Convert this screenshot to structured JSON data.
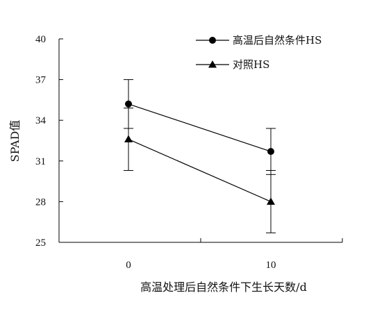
{
  "chart_data": {
    "type": "line",
    "title": "",
    "xlabel": "高温处理后自然条件下生长天数/d",
    "ylabel": "SPAD值",
    "ylim": [
      25,
      40
    ],
    "yticks": [
      25,
      28,
      31,
      34,
      37,
      40
    ],
    "ytick_labels": [
      "25",
      "28",
      "31",
      "34",
      "37",
      "40"
    ],
    "x": [
      0,
      10
    ],
    "xtick_labels": [
      "0",
      "10"
    ],
    "legend": "top-right",
    "grid": false,
    "series": [
      {
        "name": "高温后自然条件HS",
        "marker": "circle",
        "color": "#000000",
        "values": [
          35.2,
          31.7
        ],
        "error": [
          1.8,
          1.7
        ]
      },
      {
        "name": "对照HS",
        "marker": "triangle",
        "color": "#000000",
        "values": [
          32.6,
          28.0
        ],
        "error": [
          2.3,
          2.3
        ]
      }
    ]
  }
}
